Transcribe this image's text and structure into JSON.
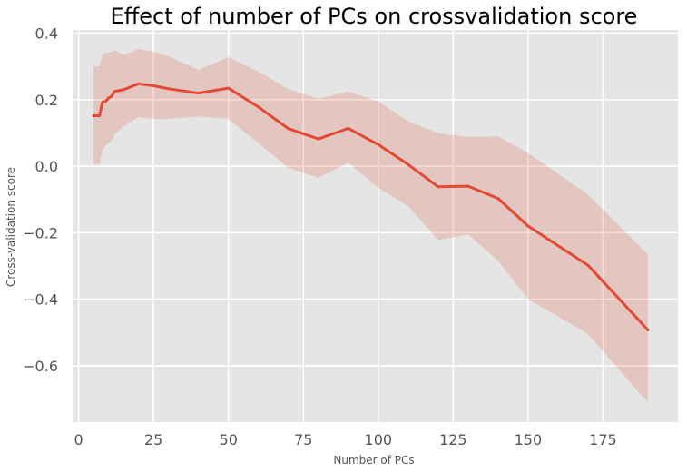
{
  "chart_data": {
    "type": "line",
    "title": "Effect of number of PCs on crossvalidation score",
    "xlabel": "Number of PCs",
    "ylabel": "Cross-validation score",
    "xlim": [
      -2,
      200
    ],
    "ylim": [
      -0.77,
      0.41
    ],
    "xticks": [
      0,
      25,
      50,
      75,
      100,
      125,
      150,
      175
    ],
    "xtick_labels": [
      "0",
      "25",
      "50",
      "75",
      "100",
      "125",
      "150",
      "175"
    ],
    "yticks": [
      0.4,
      0.2,
      0.0,
      -0.2,
      -0.4,
      -0.6
    ],
    "ytick_labels": [
      "0.4",
      "0.2",
      "0.0",
      "−0.2",
      "−0.4",
      "−0.6"
    ],
    "grid": true,
    "colors": {
      "background": "#e5e5e5",
      "grid": "#ffffff",
      "line": "#e24a33",
      "band": "#e24a33"
    },
    "series": [
      {
        "x": [
          5,
          6,
          7,
          8,
          9,
          10,
          11,
          12,
          15,
          20,
          25,
          30,
          40,
          50,
          60,
          70,
          80,
          90,
          100,
          110,
          120,
          130,
          140,
          150,
          170,
          190
        ],
        "mean": [
          0.152,
          0.152,
          0.152,
          0.193,
          0.195,
          0.205,
          0.21,
          0.225,
          0.23,
          0.248,
          0.242,
          0.233,
          0.22,
          0.235,
          0.178,
          0.113,
          0.082,
          0.114,
          0.065,
          0.005,
          -0.062,
          -0.06,
          -0.097,
          -0.18,
          -0.298,
          -0.493
        ],
        "upper": [
          0.3,
          0.3,
          0.3,
          0.335,
          0.34,
          0.342,
          0.345,
          0.35,
          0.335,
          0.352,
          0.345,
          0.33,
          0.29,
          0.328,
          0.285,
          0.232,
          0.203,
          0.225,
          0.195,
          0.135,
          0.1,
          0.088,
          0.09,
          0.04,
          -0.085,
          -0.265
        ],
        "lower": [
          0.005,
          0.005,
          0.005,
          0.05,
          0.06,
          0.07,
          0.075,
          0.095,
          0.12,
          0.148,
          0.142,
          0.142,
          0.15,
          0.142,
          0.07,
          -0.005,
          -0.035,
          0.01,
          -0.065,
          -0.12,
          -0.222,
          -0.205,
          -0.285,
          -0.4,
          -0.505,
          -0.712
        ]
      }
    ]
  }
}
